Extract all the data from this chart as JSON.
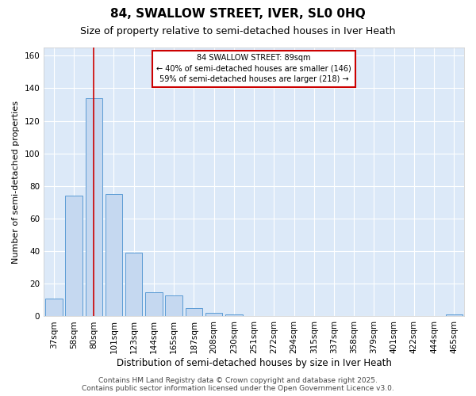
{
  "title": "84, SWALLOW STREET, IVER, SL0 0HQ",
  "subtitle": "Size of property relative to semi-detached houses in Iver Heath",
  "xlabel": "Distribution of semi-detached houses by size in Iver Heath",
  "ylabel": "Number of semi-detached properties",
  "categories": [
    "37sqm",
    "58sqm",
    "80sqm",
    "101sqm",
    "123sqm",
    "144sqm",
    "165sqm",
    "187sqm",
    "208sqm",
    "230sqm",
    "251sqm",
    "272sqm",
    "294sqm",
    "315sqm",
    "337sqm",
    "358sqm",
    "379sqm",
    "401sqm",
    "422sqm",
    "444sqm",
    "465sqm"
  ],
  "values": [
    11,
    74,
    134,
    75,
    39,
    15,
    13,
    5,
    2,
    1,
    0,
    0,
    0,
    0,
    0,
    0,
    0,
    0,
    0,
    0,
    1
  ],
  "bar_color": "#c5d8f0",
  "bar_edge_color": "#5b9bd5",
  "highlight_index": 2,
  "highlight_color": "#cc0000",
  "ylim": [
    0,
    165
  ],
  "yticks": [
    0,
    20,
    40,
    60,
    80,
    100,
    120,
    140,
    160
  ],
  "annotation_line1": "84 SWALLOW STREET: 89sqm",
  "annotation_line2": "← 40% of semi-detached houses are smaller (146)",
  "annotation_line3": "59% of semi-detached houses are larger (218) →",
  "annotation_box_color": "#ffffff",
  "annotation_box_edge": "#cc0000",
  "footer_text": "Contains HM Land Registry data © Crown copyright and database right 2025.\nContains public sector information licensed under the Open Government Licence v3.0.",
  "fig_bg_color": "#ffffff",
  "plot_bg_color": "#dce9f8",
  "grid_color": "#ffffff",
  "title_fontsize": 11,
  "subtitle_fontsize": 9,
  "tick_fontsize": 7.5,
  "ylabel_fontsize": 8,
  "xlabel_fontsize": 8.5,
  "footer_fontsize": 6.5
}
